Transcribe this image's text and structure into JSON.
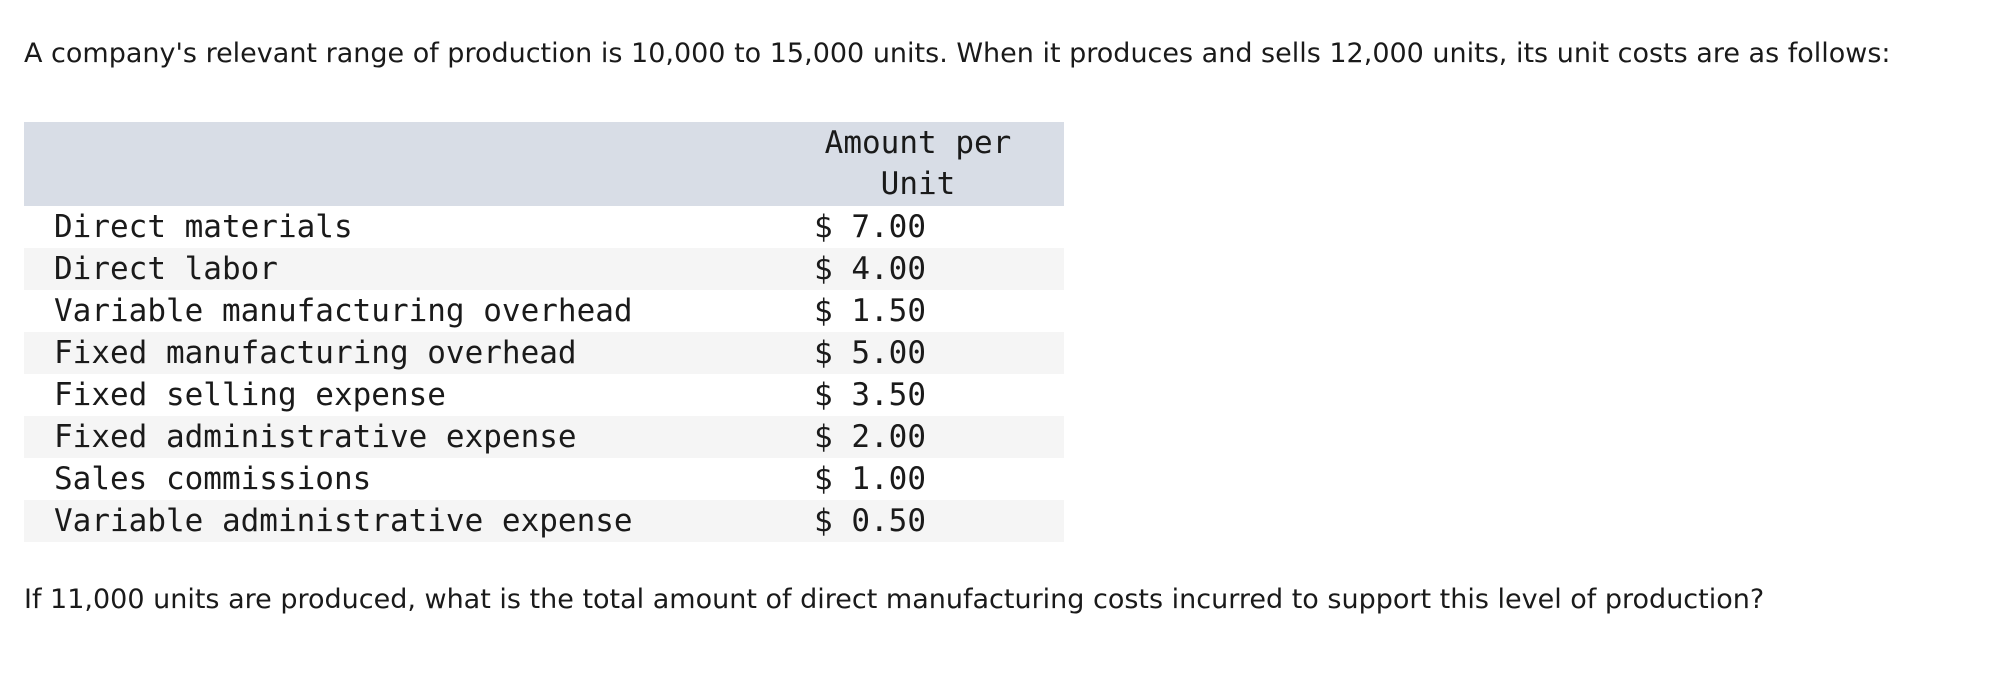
{
  "intro": "A company's relevant range of production is 10,000 to 15,000 units. When it produces and sells 12,000 units, its unit costs are as follows:",
  "table": {
    "column_header": "Amount per Unit",
    "rows": [
      [
        "Direct materials",
        "$ 7.00"
      ],
      [
        "Direct labor",
        "$ 4.00"
      ],
      [
        "Variable manufacturing overhead",
        "$ 1.50"
      ],
      [
        "Fixed manufacturing overhead",
        "$ 5.00"
      ],
      [
        "Fixed selling expense",
        "$ 3.50"
      ],
      [
        "Fixed administrative expense",
        "$ 2.00"
      ],
      [
        "Sales commissions",
        "$ 1.00"
      ],
      [
        "Variable administrative expense",
        "$ 0.50"
      ]
    ]
  },
  "question": "If 11,000 units are produced, what is the total amount of direct manufacturing costs incurred to support this level of production?"
}
